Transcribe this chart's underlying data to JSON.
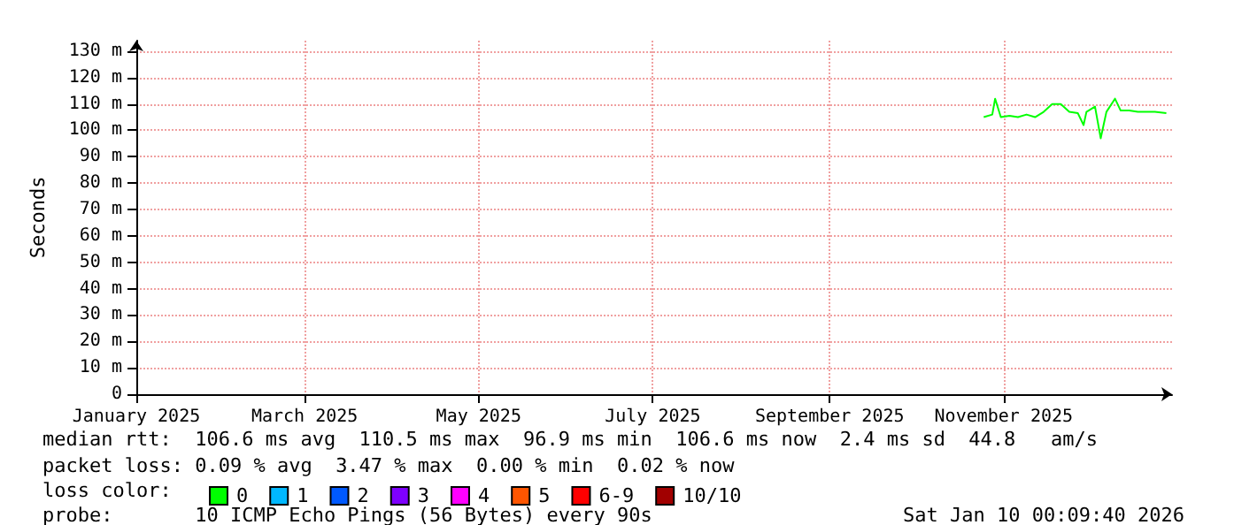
{
  "chart_data": {
    "type": "line",
    "ylabel": "Seconds",
    "legend_title": "loss color:",
    "legend": "bottom",
    "grid": true,
    "marker": "none",
    "line_style": "solid",
    "xlim": [
      "2025-01-01",
      "2025-12-30"
    ],
    "xticks": [
      {
        "value": "2025-01-01",
        "label": "January 2025"
      },
      {
        "value": "2025-03-01",
        "label": "March 2025"
      },
      {
        "value": "2025-05-01",
        "label": "May 2025"
      },
      {
        "value": "2025-07-01",
        "label": "July 2025"
      },
      {
        "value": "2025-09-01",
        "label": "September 2025"
      },
      {
        "value": "2025-11-01",
        "label": "November 2025"
      }
    ],
    "ylim": [
      0,
      134
    ],
    "yticks": [
      {
        "value": 0,
        "label": "0"
      },
      {
        "value": 10,
        "label": "10 m"
      },
      {
        "value": 20,
        "label": "20 m"
      },
      {
        "value": 30,
        "label": "30 m"
      },
      {
        "value": 40,
        "label": "40 m"
      },
      {
        "value": 50,
        "label": "50 m"
      },
      {
        "value": 60,
        "label": "60 m"
      },
      {
        "value": 70,
        "label": "70 m"
      },
      {
        "value": 80,
        "label": "80 m"
      },
      {
        "value": 90,
        "label": "90 m"
      },
      {
        "value": 100,
        "label": "100 m"
      },
      {
        "value": 110,
        "label": "110 m"
      },
      {
        "value": 120,
        "label": "120 m"
      },
      {
        "value": 130,
        "label": "130 m"
      }
    ],
    "x": [
      "2025-10-25",
      "2025-10-28",
      "2025-10-29",
      "2025-10-31",
      "2025-11-03",
      "2025-11-06",
      "2025-11-09",
      "2025-11-12",
      "2025-11-15",
      "2025-11-18",
      "2025-11-21",
      "2025-11-24",
      "2025-11-27",
      "2025-11-29",
      "2025-11-30",
      "2025-12-03",
      "2025-12-05",
      "2025-12-07",
      "2025-12-10",
      "2025-12-12",
      "2025-12-15",
      "2025-12-18",
      "2025-12-21",
      "2025-12-24",
      "2025-12-28"
    ],
    "series": [
      {
        "name": "0",
        "color": "#00ff00",
        "values": [
          105,
          106,
          112,
          105,
          105.5,
          105,
          106,
          105,
          107,
          110,
          110,
          107,
          106.5,
          102,
          107,
          109,
          97,
          107,
          112,
          107.5,
          107.5,
          107,
          107,
          107,
          106.5
        ]
      },
      {
        "name": "1",
        "color": "#00b8ff",
        "values": [
          null,
          null,
          null,
          null,
          null,
          null,
          null,
          null,
          null,
          null,
          null,
          null,
          null,
          null,
          null,
          null,
          null,
          null,
          null,
          null,
          null,
          null,
          null,
          null,
          null
        ]
      },
      {
        "name": "2",
        "color": "#0059ff",
        "values": [
          null,
          null,
          null,
          null,
          null,
          null,
          null,
          null,
          null,
          null,
          null,
          null,
          null,
          null,
          null,
          null,
          null,
          null,
          null,
          null,
          null,
          null,
          null,
          null,
          null
        ]
      },
      {
        "name": "3",
        "color": "#7e00ff",
        "values": [
          null,
          null,
          null,
          null,
          null,
          null,
          null,
          null,
          null,
          null,
          null,
          null,
          null,
          null,
          null,
          null,
          null,
          null,
          null,
          null,
          null,
          null,
          null,
          null,
          null
        ]
      },
      {
        "name": "4",
        "color": "#ff00ff",
        "values": [
          null,
          null,
          null,
          null,
          null,
          null,
          null,
          null,
          null,
          null,
          null,
          null,
          null,
          null,
          null,
          null,
          null,
          null,
          null,
          null,
          null,
          null,
          null,
          null,
          null
        ]
      },
      {
        "name": "5",
        "color": "#ff5500",
        "values": [
          null,
          null,
          null,
          null,
          null,
          null,
          null,
          null,
          null,
          null,
          null,
          null,
          null,
          null,
          null,
          null,
          null,
          null,
          null,
          null,
          null,
          null,
          null,
          null,
          null
        ]
      },
      {
        "name": "6-9",
        "color": "#ff0000",
        "values": [
          null,
          null,
          null,
          null,
          null,
          null,
          null,
          null,
          null,
          null,
          null,
          null,
          null,
          null,
          null,
          null,
          null,
          null,
          null,
          null,
          null,
          null,
          null,
          null,
          null
        ]
      },
      {
        "name": "10/10",
        "color": "#a10000",
        "values": [
          null,
          null,
          null,
          null,
          null,
          null,
          null,
          null,
          null,
          null,
          null,
          null,
          null,
          null,
          null,
          null,
          null,
          null,
          null,
          null,
          null,
          null,
          null,
          null,
          null
        ]
      }
    ],
    "annotations": [
      "median rtt:  106.6 ms avg  110.5 ms max  96.9 ms min  106.6 ms now  2.4 ms sd  44.8   am/s",
      "packet loss: 0.09 % avg  3.47 % max  0.00 % min  0.02 % now",
      "probe:       10 ICMP Echo Pings (56 Bytes) every 90s",
      "Sat Jan 10 00:09:40 2026"
    ]
  }
}
